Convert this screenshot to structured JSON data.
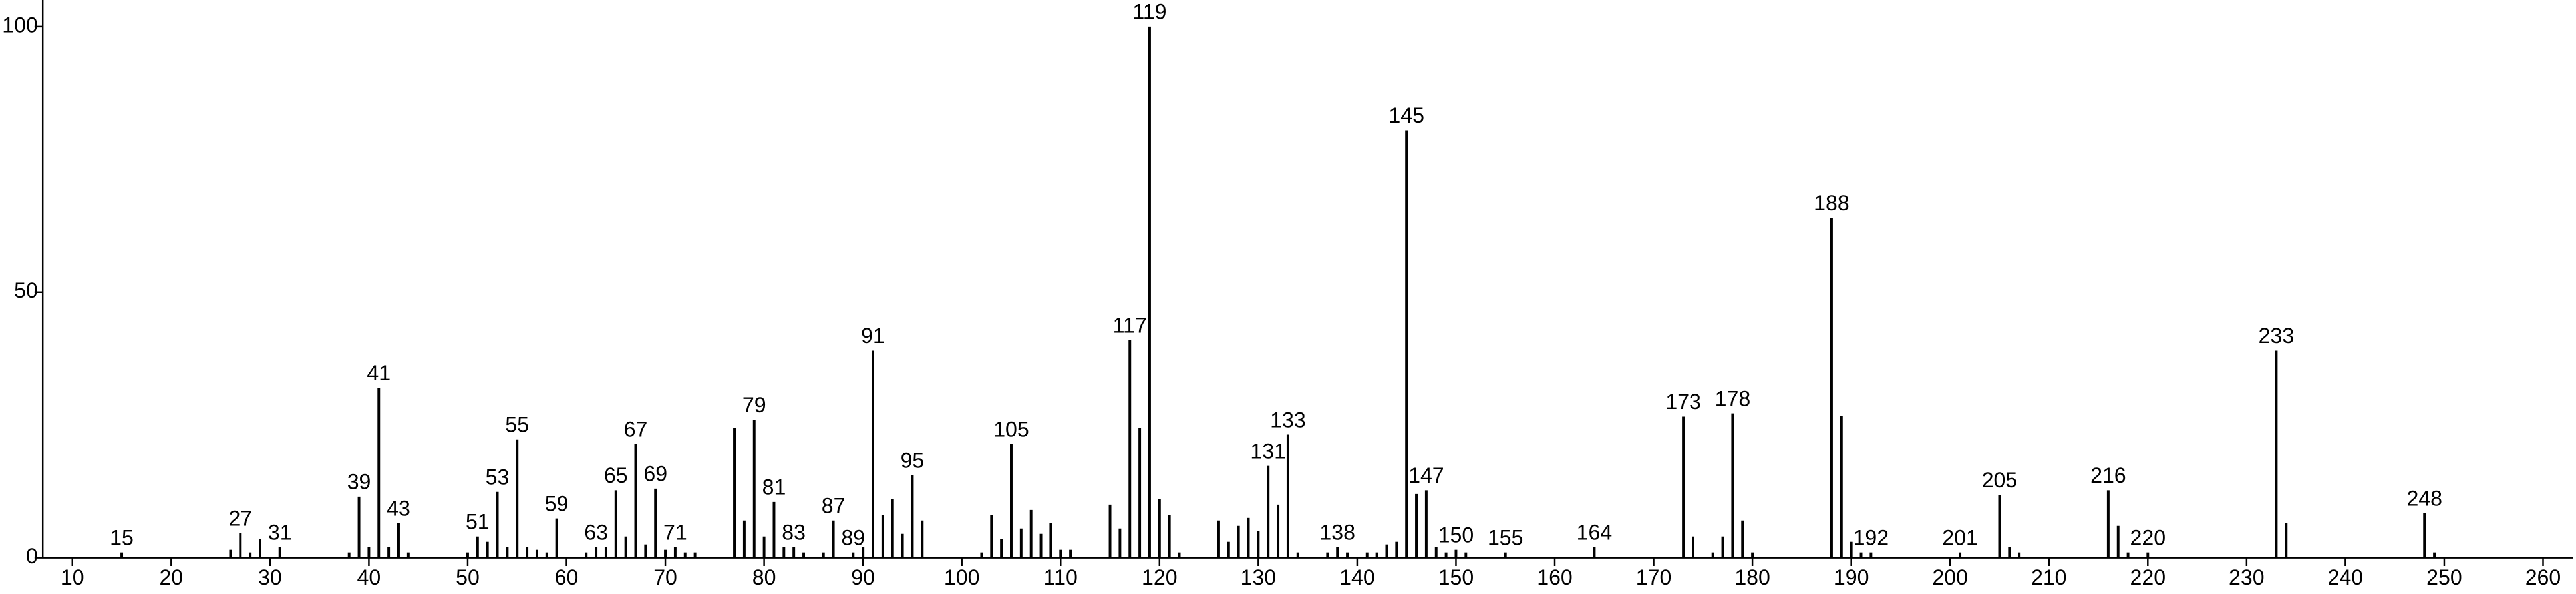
{
  "chart_data": {
    "type": "stick",
    "xlim": [
      7,
      263
    ],
    "ylim": [
      0,
      105
    ],
    "xticks": [
      10,
      20,
      30,
      40,
      50,
      60,
      70,
      80,
      90,
      100,
      110,
      120,
      130,
      140,
      150,
      160,
      170,
      180,
      190,
      200,
      210,
      220,
      230,
      240,
      250,
      260
    ],
    "yticks": [
      0,
      50,
      100
    ],
    "series": [
      {
        "color": "#000000",
        "show_labels": true,
        "x": [
          15,
          27,
          31,
          39,
          41,
          43,
          51,
          53,
          55,
          59,
          63,
          65,
          67,
          69,
          71,
          79,
          81,
          83,
          87,
          89,
          91,
          95,
          105,
          117,
          119,
          131,
          133,
          138,
          145,
          147,
          150,
          155,
          164,
          173,
          178,
          188,
          192,
          201,
          205,
          216,
          220,
          233,
          248
        ],
        "values": [
          1,
          4.6,
          2,
          11.5,
          32,
          6.5,
          4,
          12.4,
          22.3,
          7.4,
          2,
          12.7,
          21.4,
          13,
          2,
          26,
          10.5,
          2,
          7,
          1,
          39,
          15.5,
          21.4,
          41,
          100,
          17.3,
          23.2,
          2,
          80.5,
          12.7,
          1.5,
          1,
          2,
          26.6,
          27.2,
          64,
          1,
          1,
          11.8,
          12.7,
          1,
          39,
          8.4
        ]
      },
      {
        "color": "#000000",
        "show_labels": false,
        "x": [
          26,
          28,
          29,
          38,
          40,
          42,
          44,
          50,
          52,
          54,
          56,
          57,
          58,
          62,
          64,
          66,
          68,
          70,
          72,
          73,
          77,
          78,
          80,
          82,
          84,
          86,
          90,
          92,
          93,
          94,
          96,
          102,
          103,
          104,
          106,
          107,
          108,
          109,
          110,
          111,
          115,
          116,
          118,
          120,
          121,
          122,
          126,
          127,
          128,
          129,
          130,
          132,
          134,
          137,
          139,
          141,
          142,
          143,
          144,
          146,
          148,
          149,
          151,
          174,
          176,
          177,
          179,
          180,
          189,
          190,
          191,
          206,
          207,
          217,
          218,
          234,
          249
        ],
        "values": [
          1.5,
          1,
          3.5,
          1,
          2,
          2,
          1,
          1,
          3,
          2,
          2,
          1.5,
          1,
          1,
          2,
          4,
          2.5,
          1.5,
          1,
          1,
          24.5,
          7,
          4,
          2,
          1,
          1,
          2,
          8,
          11,
          4.5,
          7,
          1,
          8,
          3.5,
          5.5,
          9,
          4.5,
          6.5,
          1.5,
          1.5,
          10,
          5.5,
          24.5,
          11,
          8,
          1,
          7,
          3,
          6,
          7.5,
          5,
          10,
          1,
          1,
          1,
          1,
          1,
          2.5,
          3,
          12,
          2,
          1,
          1,
          4,
          1,
          4,
          7,
          1,
          26.7,
          3,
          1,
          2,
          1,
          6,
          1,
          6.5,
          1
        ]
      }
    ]
  }
}
